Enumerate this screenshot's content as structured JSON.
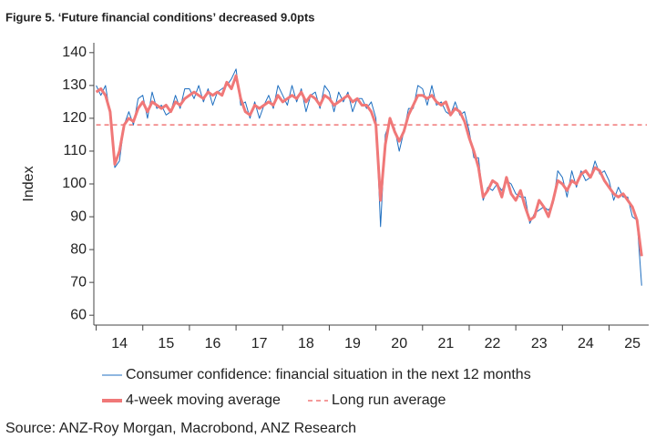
{
  "chart_data": {
    "type": "line",
    "title": "Figure 5. ‘Future financial conditions’ decreased 9.0pts",
    "y_label": "Index",
    "source": "Source: ANZ-Roy Morgan, Macrobond, ANZ Research",
    "x": [
      2014.0,
      2014.1,
      2014.2,
      2014.3,
      2014.4,
      2014.5,
      2014.6,
      2014.7,
      2014.8,
      2014.9,
      2015.0,
      2015.1,
      2015.2,
      2015.3,
      2015.4,
      2015.5,
      2015.6,
      2015.7,
      2015.8,
      2015.9,
      2016.0,
      2016.1,
      2016.2,
      2016.3,
      2016.4,
      2016.5,
      2016.6,
      2016.7,
      2016.8,
      2016.9,
      2017.0,
      2017.1,
      2017.2,
      2017.3,
      2017.4,
      2017.5,
      2017.6,
      2017.7,
      2017.8,
      2017.9,
      2018.0,
      2018.1,
      2018.2,
      2018.3,
      2018.4,
      2018.5,
      2018.6,
      2018.7,
      2018.8,
      2018.9,
      2019.0,
      2019.1,
      2019.2,
      2019.3,
      2019.4,
      2019.5,
      2019.6,
      2019.7,
      2019.8,
      2019.9,
      2020.0,
      2020.1,
      2020.2,
      2020.3,
      2020.4,
      2020.5,
      2020.6,
      2020.7,
      2020.8,
      2020.9,
      2021.0,
      2021.1,
      2021.2,
      2021.3,
      2021.4,
      2021.5,
      2021.6,
      2021.7,
      2021.8,
      2021.9,
      2022.0,
      2022.1,
      2022.2,
      2022.3,
      2022.4,
      2022.5,
      2022.6,
      2022.7,
      2022.8,
      2022.9,
      2023.0,
      2023.1,
      2023.2,
      2023.3,
      2023.4,
      2023.5,
      2023.6,
      2023.7,
      2023.8,
      2023.9,
      2024.0,
      2024.1,
      2024.2,
      2024.3,
      2024.4,
      2024.5,
      2024.6,
      2024.7,
      2024.8,
      2024.9,
      2025.0,
      2025.1,
      2025.2,
      2025.3,
      2025.4,
      2025.5,
      2025.6,
      2025.7
    ],
    "series": [
      {
        "name": "Consumer confidence: financial situation in the next 12 months",
        "color": "#1f6fc0",
        "width": 1,
        "values": [
          130,
          127,
          130,
          121,
          105,
          107,
          118,
          122,
          118,
          126,
          127,
          120,
          128,
          123,
          124,
          121,
          122,
          127,
          123,
          129,
          129,
          126,
          130,
          125,
          129,
          124,
          128,
          129,
          130,
          132,
          135,
          124,
          125,
          120,
          125,
          120,
          124,
          127,
          123,
          130,
          127,
          124,
          130,
          125,
          129,
          122,
          127,
          128,
          123,
          130,
          128,
          122,
          128,
          125,
          128,
          122,
          126,
          126,
          123,
          125,
          120,
          87,
          115,
          119,
          117,
          110,
          116,
          123,
          123,
          130,
          129,
          124,
          130,
          124,
          125,
          122,
          121,
          125,
          121,
          122,
          116,
          108,
          108,
          95,
          99,
          98,
          100,
          98,
          101,
          100,
          97,
          96,
          96,
          88,
          91,
          92,
          93,
          92,
          94,
          104,
          102,
          96,
          104,
          99,
          104,
          101,
          102,
          107,
          103,
          104,
          101,
          95,
          99,
          96,
          96,
          90,
          89,
          69
        ]
      },
      {
        "name": "4-week moving average",
        "color": "#f07878",
        "width": 3,
        "values": [
          128,
          129,
          127,
          122,
          106,
          110,
          118,
          120,
          119,
          123,
          125,
          122,
          125,
          124,
          123,
          124,
          122,
          125,
          124,
          126,
          127,
          128,
          127,
          126,
          128,
          127,
          128,
          127,
          131,
          129,
          133,
          126,
          122,
          121,
          124,
          123,
          124,
          125,
          124,
          127,
          125,
          126,
          127,
          126,
          128,
          125,
          127,
          126,
          124,
          127,
          126,
          124,
          125,
          126,
          127,
          125,
          126,
          124,
          124,
          122,
          118,
          95,
          112,
          120,
          116,
          113,
          116,
          121,
          124,
          127,
          127,
          126,
          127,
          125,
          124,
          125,
          121,
          123,
          122,
          119,
          114,
          110,
          105,
          96,
          98,
          101,
          100,
          96,
          102,
          97,
          95,
          98,
          93,
          89,
          90,
          95,
          93,
          90,
          95,
          101,
          100,
          98,
          101,
          100,
          103,
          104,
          102,
          105,
          104,
          101,
          99,
          97,
          96,
          97,
          95,
          93,
          89,
          78
        ]
      }
    ],
    "reference_line": {
      "name": "Long run average",
      "value": 118,
      "color": "#f07878"
    },
    "xlim": [
      2013.95,
      2025.85
    ],
    "xticks": [
      {
        "value": 2014.5,
        "label": "14"
      },
      {
        "value": 2015.5,
        "label": "15"
      },
      {
        "value": 2016.5,
        "label": "16"
      },
      {
        "value": 2017.5,
        "label": "17"
      },
      {
        "value": 2018.5,
        "label": "18"
      },
      {
        "value": 2019.5,
        "label": "19"
      },
      {
        "value": 2020.5,
        "label": "20"
      },
      {
        "value": 2021.5,
        "label": "21"
      },
      {
        "value": 2022.5,
        "label": "22"
      },
      {
        "value": 2023.5,
        "label": "23"
      },
      {
        "value": 2024.5,
        "label": "24"
      },
      {
        "value": 2025.5,
        "label": "25"
      }
    ],
    "ylim": [
      57,
      143
    ],
    "yticks": [
      60,
      70,
      80,
      90,
      100,
      110,
      120,
      130,
      140
    ],
    "grid": false
  }
}
